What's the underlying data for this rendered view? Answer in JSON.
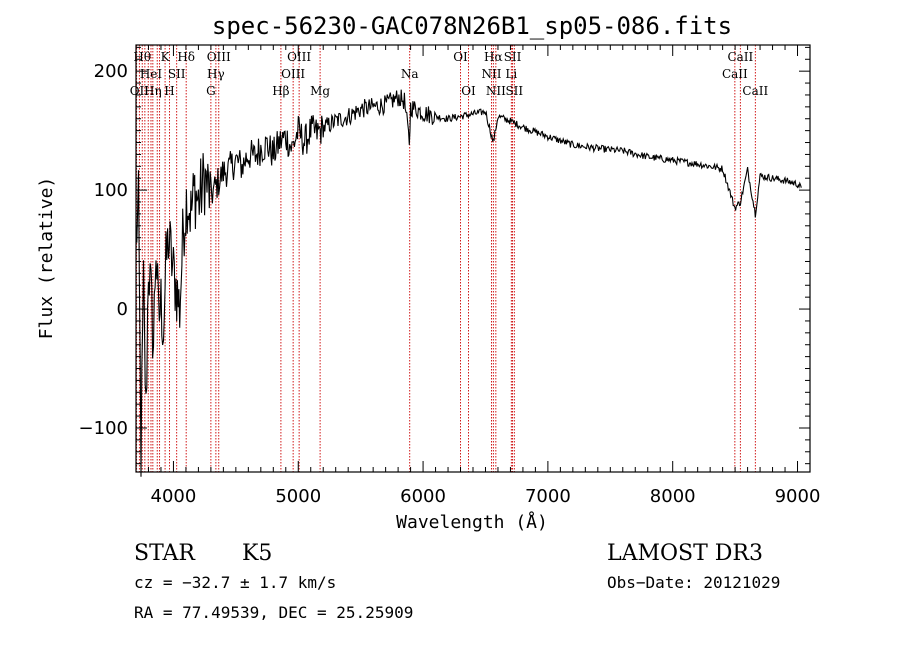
{
  "chart_data": {
    "type": "line",
    "title": "spec-56230-GAC078N26B1_sp05-086.fits",
    "xlabel": "Wavelength (Å)",
    "ylabel": "Flux (relative)",
    "xlim": [
      3700,
      9100
    ],
    "ylim": [
      -137,
      222
    ],
    "x_ticks": [
      4000,
      5000,
      6000,
      7000,
      8000,
      9000
    ],
    "x_tick_labels": [
      "4000",
      "5000",
      "6000",
      "7000",
      "8000",
      "9000"
    ],
    "y_ticks": [
      -100,
      0,
      100,
      200
    ],
    "y_tick_labels": [
      "−100",
      "0",
      "100",
      "200"
    ],
    "grid": false,
    "series": [
      {
        "name": "spectrum",
        "color": "#000000",
        "x": [
          3700,
          3720,
          3740,
          3760,
          3780,
          3800,
          3820,
          3840,
          3860,
          3880,
          3900,
          3920,
          3940,
          3960,
          3980,
          4000,
          4020,
          4050,
          4080,
          4110,
          4140,
          4170,
          4200,
          4250,
          4300,
          4350,
          4400,
          4450,
          4500,
          4550,
          4600,
          4650,
          4700,
          4750,
          4800,
          4850,
          4900,
          4950,
          5000,
          5050,
          5100,
          5150,
          5200,
          5300,
          5400,
          5500,
          5600,
          5700,
          5800,
          5850,
          5890,
          5900,
          5950,
          6000,
          6100,
          6200,
          6300,
          6400,
          6500,
          6563,
          6600,
          6700,
          6800,
          7000,
          7200,
          7400,
          7600,
          7800,
          8000,
          8200,
          8400,
          8498,
          8542,
          8600,
          8662,
          8700,
          8800,
          8900,
          9000,
          9030
        ],
        "y": [
          60,
          85,
          -120,
          20,
          -90,
          40,
          10,
          -30,
          55,
          -10,
          5,
          -15,
          35,
          60,
          45,
          30,
          20,
          0,
          70,
          95,
          80,
          100,
          90,
          110,
          95,
          105,
          115,
          118,
          125,
          120,
          130,
          128,
          135,
          138,
          130,
          140,
          145,
          135,
          150,
          140,
          150,
          148,
          152,
          158,
          162,
          168,
          170,
          172,
          178,
          175,
          140,
          170,
          168,
          165,
          162,
          160,
          162,
          164,
          166,
          140,
          162,
          158,
          153,
          145,
          138,
          135,
          133,
          128,
          125,
          122,
          118,
          85,
          90,
          117,
          80,
          112,
          110,
          108,
          105,
          102
        ]
      }
    ],
    "line_markers": [
      {
        "wavelength": 3705,
        "label": "",
        "row": 0
      },
      {
        "wavelength": 3727,
        "label": "OII",
        "row": 2
      },
      {
        "wavelength": 3750,
        "label": "Hθ",
        "row": 0
      },
      {
        "wavelength": 3771,
        "label": "",
        "row": 0
      },
      {
        "wavelength": 3798,
        "label": "",
        "row": 0
      },
      {
        "wavelength": 3820,
        "label": "HeI",
        "row": 1
      },
      {
        "wavelength": 3835,
        "label": "Hη",
        "row": 2
      },
      {
        "wavelength": 3870,
        "label": "",
        "row": 0
      },
      {
        "wavelength": 3889,
        "label": "",
        "row": 0
      },
      {
        "wavelength": 3933,
        "label": "K",
        "row": 0
      },
      {
        "wavelength": 3968,
        "label": "H",
        "row": 2
      },
      {
        "wavelength": 4026,
        "label": "SII",
        "row": 1
      },
      {
        "wavelength": 4102,
        "label": "Hδ",
        "row": 0
      },
      {
        "wavelength": 4300,
        "label": "G",
        "row": 2
      },
      {
        "wavelength": 4340,
        "label": "Hγ",
        "row": 1
      },
      {
        "wavelength": 4363,
        "label": "OIII",
        "row": 0
      },
      {
        "wavelength": 4861,
        "label": "Hβ",
        "row": 2
      },
      {
        "wavelength": 4959,
        "label": "OIII",
        "row": 1
      },
      {
        "wavelength": 5007,
        "label": "OIII",
        "row": 0
      },
      {
        "wavelength": 5175,
        "label": "Mg",
        "row": 2
      },
      {
        "wavelength": 5893,
        "label": "Na",
        "row": 1
      },
      {
        "wavelength": 6300,
        "label": "OI",
        "row": 0
      },
      {
        "wavelength": 6364,
        "label": "OI",
        "row": 2
      },
      {
        "wavelength": 6548,
        "label": "NII",
        "row": 1
      },
      {
        "wavelength": 6563,
        "label": "Hα",
        "row": 0
      },
      {
        "wavelength": 6583,
        "label": "NII",
        "row": 2
      },
      {
        "wavelength": 6707,
        "label": "Li",
        "row": 1
      },
      {
        "wavelength": 6717,
        "label": "SII",
        "row": 0
      },
      {
        "wavelength": 6731,
        "label": "SII",
        "row": 2
      },
      {
        "wavelength": 8498,
        "label": "CaII",
        "row": 1
      },
      {
        "wavelength": 8542,
        "label": "CaII",
        "row": 0
      },
      {
        "wavelength": 8662,
        "label": "CaII",
        "row": 2
      }
    ],
    "marker_color": "#cc0000"
  },
  "info": {
    "class": "STAR",
    "subclass": "K5",
    "survey": "LAMOST DR3",
    "cz": "cz = −32.7 ± 1.7 km/s",
    "obs_date": "Obs−Date: 20121029",
    "coords": "RA =  77.49539, DEC =  25.25909"
  }
}
